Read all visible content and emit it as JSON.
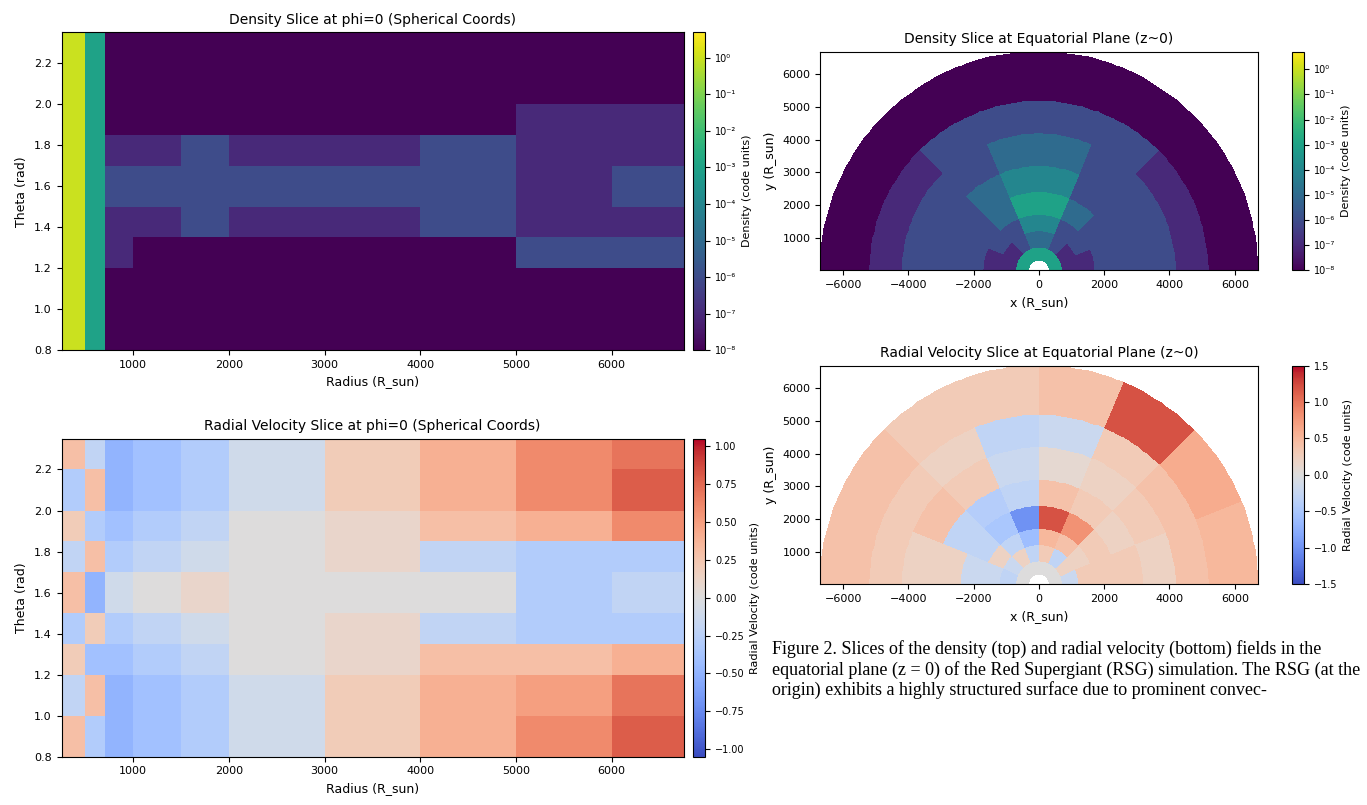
{
  "chart_data": [
    {
      "type": "heatmap",
      "title": "Density Slice at phi=0 (Spherical Coords)",
      "x_label": "Radius (R_sun)",
      "y_label": "Theta (rad)",
      "x_edges": [
        250,
        500,
        700,
        1000,
        1500,
        2000,
        3000,
        4000,
        5000,
        6000,
        6750
      ],
      "y_edges": [
        0.8,
        1.0,
        1.2,
        1.35,
        1.5,
        1.7,
        1.85,
        2.0,
        2.2,
        2.35
      ],
      "cells": [
        [
          1,
          0.001,
          1e-08,
          1e-08,
          1e-08,
          1e-08,
          1e-08,
          1e-08,
          1e-08,
          1e-08
        ],
        [
          1,
          0.001,
          1e-08,
          1e-08,
          1e-08,
          1e-08,
          1e-08,
          1e-08,
          1e-08,
          1e-08
        ],
        [
          1,
          0.001,
          1e-07,
          1e-08,
          1e-08,
          1e-08,
          1e-08,
          1e-08,
          1e-06,
          1e-06
        ],
        [
          1,
          0.001,
          1e-07,
          1e-07,
          1e-06,
          1e-07,
          1e-07,
          1e-06,
          1e-07,
          1e-07
        ],
        [
          1,
          0.001,
          1e-06,
          1e-06,
          1e-06,
          1e-06,
          1e-06,
          1e-06,
          1e-07,
          1e-06
        ],
        [
          1,
          0.001,
          1e-07,
          1e-07,
          1e-06,
          1e-07,
          1e-07,
          1e-06,
          1e-07,
          1e-07
        ],
        [
          1,
          0.001,
          1e-08,
          1e-08,
          1e-08,
          1e-08,
          1e-08,
          1e-08,
          1e-07,
          1e-07
        ],
        [
          1,
          0.001,
          1e-08,
          1e-08,
          1e-08,
          1e-08,
          1e-08,
          1e-08,
          1e-08,
          1e-08
        ],
        [
          1,
          0.001,
          1e-08,
          1e-08,
          1e-08,
          1e-08,
          1e-08,
          1e-08,
          1e-08,
          1e-08
        ]
      ],
      "xlim": [
        250,
        6750
      ],
      "ylim": [
        0.8,
        2.35
      ],
      "xticks": [
        1000,
        2000,
        3000,
        4000,
        5000,
        6000
      ],
      "yticks": [
        0.8,
        1.0,
        1.2,
        1.4,
        1.6,
        1.8,
        2.0,
        2.2
      ],
      "colorbar": {
        "label": "Density (code units)",
        "log": true,
        "range": [
          1e-08,
          5
        ],
        "ticks": [
          {
            "value": 1e-08,
            "label": "10⁻⁸"
          },
          {
            "value": 1e-07,
            "label": "10⁻⁷"
          },
          {
            "value": 1e-06,
            "label": "10⁻⁶"
          },
          {
            "value": 1e-05,
            "label": "10⁻⁵"
          },
          {
            "value": 0.0001,
            "label": "10⁻⁴"
          },
          {
            "value": 0.001,
            "label": "10⁻³"
          },
          {
            "value": 0.01,
            "label": "10⁻²"
          },
          {
            "value": 0.1,
            "label": "10⁻¹"
          },
          {
            "value": 1,
            "label": "10⁰"
          }
        ]
      }
    },
    {
      "type": "heatmap",
      "title": "Radial Velocity Slice at phi=0 (Spherical Coords)",
      "x_label": "Radius (R_sun)",
      "y_label": "Theta (rad)",
      "x_edges": [
        250,
        500,
        700,
        1000,
        1500,
        2000,
        3000,
        4000,
        5000,
        6000,
        6750
      ],
      "y_edges": [
        0.8,
        1.0,
        1.2,
        1.35,
        1.5,
        1.7,
        1.85,
        2.0,
        2.2,
        2.35
      ],
      "cells": [
        [
          0.3,
          -0.3,
          -0.5,
          -0.4,
          -0.3,
          -0.1,
          0.2,
          0.4,
          0.6,
          0.8
        ],
        [
          -0.2,
          0.3,
          -0.5,
          -0.4,
          -0.3,
          -0.1,
          0.2,
          0.4,
          0.5,
          0.7
        ],
        [
          0.2,
          -0.4,
          -0.4,
          -0.3,
          -0.2,
          0.0,
          0.1,
          0.3,
          0.3,
          0.4
        ],
        [
          -0.3,
          0.2,
          -0.3,
          -0.2,
          -0.1,
          0.0,
          0.1,
          -0.2,
          -0.3,
          -0.3
        ],
        [
          0.3,
          -0.5,
          -0.1,
          0.0,
          0.1,
          0.0,
          0.0,
          0.0,
          -0.3,
          -0.2
        ],
        [
          -0.2,
          0.3,
          -0.3,
          -0.2,
          -0.1,
          0.0,
          0.1,
          -0.2,
          -0.3,
          -0.3
        ],
        [
          0.2,
          -0.3,
          -0.4,
          -0.3,
          -0.2,
          0.0,
          0.1,
          0.3,
          0.4,
          0.6
        ],
        [
          -0.3,
          0.3,
          -0.5,
          -0.4,
          -0.3,
          -0.1,
          0.2,
          0.4,
          0.6,
          0.8
        ],
        [
          0.3,
          -0.2,
          -0.5,
          -0.4,
          -0.3,
          -0.1,
          0.2,
          0.4,
          0.6,
          0.7
        ]
      ],
      "xlim": [
        250,
        6750
      ],
      "ylim": [
        0.8,
        2.35
      ],
      "xticks": [
        1000,
        2000,
        3000,
        4000,
        5000,
        6000
      ],
      "yticks": [
        0.8,
        1.0,
        1.2,
        1.4,
        1.6,
        1.8,
        2.0,
        2.2
      ],
      "colorbar": {
        "label": "Radial Velocity (code units)",
        "log": false,
        "range": [
          -1.05,
          1.05
        ],
        "ticks": [
          {
            "value": -1,
            "label": "−1.00"
          },
          {
            "value": -0.75,
            "label": "−0.75"
          },
          {
            "value": -0.5,
            "label": "−0.50"
          },
          {
            "value": -0.25,
            "label": "−0.25"
          },
          {
            "value": 0,
            "label": "0.00"
          },
          {
            "value": 0.25,
            "label": "0.25"
          },
          {
            "value": 0.5,
            "label": "0.50"
          },
          {
            "value": 0.75,
            "label": "0.75"
          },
          {
            "value": 1,
            "label": "1.00"
          }
        ]
      }
    },
    {
      "type": "polar_heatmap",
      "title": "Density Slice at Equatorial Plane (z~0)",
      "x_label": "x (R_sun)",
      "y_label": "y (R_sun)",
      "r_edges": [
        300,
        700,
        1200,
        1700,
        2400,
        3200,
        4200,
        5200,
        6700
      ],
      "phi_edges": [
        0,
        22.5,
        45,
        67.5,
        90,
        112.5,
        135,
        157.5,
        180
      ],
      "cells": [
        [
          0.001,
          0.001,
          0.001,
          0.001,
          0.001,
          0.001,
          0.001,
          0.001
        ],
        [
          1e-07,
          1e-07,
          1e-06,
          1e-05,
          1e-05,
          1e-06,
          1e-07,
          1e-07
        ],
        [
          1e-07,
          1e-06,
          1e-06,
          0.0001,
          0.0001,
          1e-06,
          1e-06,
          1e-07
        ],
        [
          1e-06,
          1e-06,
          1e-05,
          0.001,
          0.001,
          1e-05,
          1e-06,
          1e-06
        ],
        [
          1e-06,
          1e-06,
          1e-06,
          0.0001,
          0.0001,
          1e-05,
          1e-06,
          1e-06
        ],
        [
          1e-06,
          1e-06,
          1e-06,
          1e-05,
          1e-05,
          1e-06,
          1e-06,
          1e-06
        ],
        [
          1e-07,
          1e-07,
          1e-06,
          1e-06,
          1e-06,
          1e-06,
          1e-07,
          1e-07
        ],
        [
          1e-08,
          1e-08,
          1e-08,
          1e-08,
          1e-08,
          1e-08,
          1e-08,
          1e-08
        ]
      ],
      "xlim": [
        -6700,
        6700
      ],
      "ylim": [
        0,
        6700
      ],
      "xticks": [
        {
          "value": -6000,
          "label": "−6000"
        },
        {
          "value": -4000,
          "label": "−4000"
        },
        {
          "value": -2000,
          "label": "−2000"
        },
        0,
        2000,
        4000,
        6000
      ],
      "yticks": [
        1000,
        2000,
        3000,
        4000,
        5000,
        6000
      ],
      "colorbar": {
        "label": "Density (code units)",
        "log": true,
        "range": [
          1e-08,
          5
        ],
        "ticks": [
          {
            "value": 1e-08,
            "label": "10⁻⁸"
          },
          {
            "value": 1e-07,
            "label": "10⁻⁷"
          },
          {
            "value": 1e-06,
            "label": "10⁻⁶"
          },
          {
            "value": 1e-05,
            "label": "10⁻⁵"
          },
          {
            "value": 0.0001,
            "label": "10⁻⁴"
          },
          {
            "value": 0.001,
            "label": "10⁻³"
          },
          {
            "value": 0.01,
            "label": "10⁻²"
          },
          {
            "value": 0.1,
            "label": "10⁻¹"
          },
          {
            "value": 1,
            "label": "10⁰"
          }
        ]
      }
    },
    {
      "type": "polar_heatmap",
      "title": "Radial Velocity Slice at Equatorial Plane (z~0)",
      "x_label": "x (R_sun)",
      "y_label": "y (R_sun)",
      "r_edges": [
        300,
        700,
        1200,
        1700,
        2400,
        3200,
        4200,
        5200,
        6700
      ],
      "phi_edges": [
        0,
        22.5,
        45,
        67.5,
        90,
        112.5,
        135,
        157.5,
        180
      ],
      "cells": [
        [
          0.0,
          0.0,
          0.0,
          0.0,
          0.0,
          0.0,
          0.0,
          0.0
        ],
        [
          -0.2,
          0.2,
          -0.3,
          0.3,
          -0.3,
          0.2,
          -0.2,
          -0.3
        ],
        [
          0.3,
          0.2,
          0.4,
          0.5,
          -0.6,
          -0.3,
          0.2,
          -0.2
        ],
        [
          0.3,
          0.3,
          0.8,
          1.2,
          -1.0,
          -0.5,
          -0.3,
          -0.2
        ],
        [
          0.3,
          0.2,
          0.3,
          0.4,
          -0.3,
          -0.4,
          -0.3,
          0.2
        ],
        [
          0.2,
          0.3,
          0.2,
          0.1,
          -0.2,
          0.3,
          0.4,
          0.2
        ],
        [
          0.4,
          0.4,
          0.3,
          -0.2,
          -0.3,
          0.2,
          0.3,
          0.3
        ],
        [
          0.5,
          0.6,
          1.2,
          0.4,
          0.3,
          0.3,
          0.4,
          0.4
        ]
      ],
      "xlim": [
        -6700,
        6700
      ],
      "ylim": [
        0,
        6700
      ],
      "xticks": [
        {
          "value": -6000,
          "label": "−6000"
        },
        {
          "value": -4000,
          "label": "−4000"
        },
        {
          "value": -2000,
          "label": "−2000"
        },
        0,
        2000,
        4000,
        6000
      ],
      "yticks": [
        1000,
        2000,
        3000,
        4000,
        5000,
        6000
      ],
      "colorbar": {
        "label": "Radial Velocity (code units)",
        "log": false,
        "range": [
          -1.5,
          1.5
        ],
        "ticks": [
          {
            "value": -1.5,
            "label": "−1.5"
          },
          {
            "value": -1,
            "label": "−1.0"
          },
          {
            "value": -0.5,
            "label": "−0.5"
          },
          {
            "value": 0,
            "label": "0.0"
          },
          {
            "value": 0.5,
            "label": "0.5"
          },
          {
            "value": 1,
            "label": "1.0"
          },
          {
            "value": 1.5,
            "label": "1.5"
          }
        ]
      }
    }
  ],
  "caption": "Figure 2. Slices of the density (top) and radial velocity (bottom) fields in the equatorial plane (z = 0) of the Red Supergiant (RSG) simulation. The RSG (at the origin) exhibits a highly structured surface due to prominent convec-"
}
